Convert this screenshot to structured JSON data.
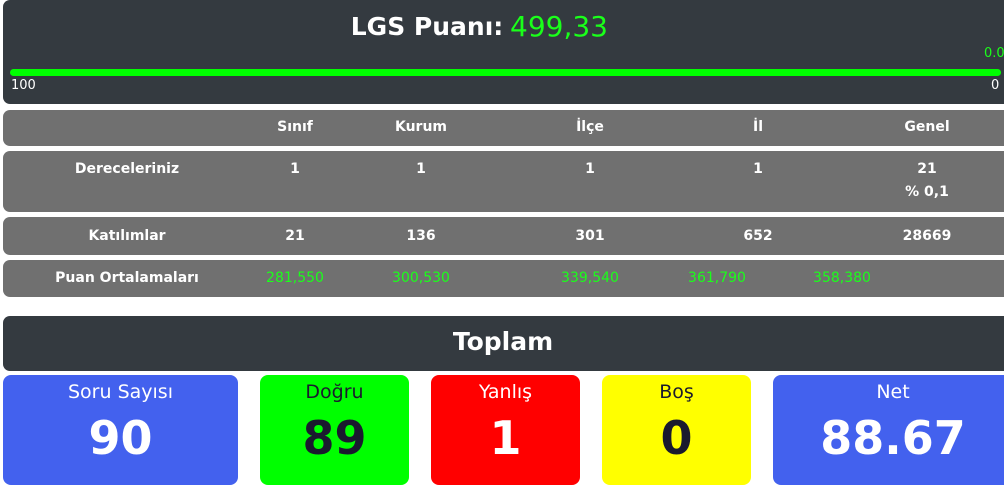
{
  "score": {
    "label": "LGS Puanı:",
    "value": "499,33",
    "bar_value_label": "0.0",
    "bar_left": "100",
    "bar_right": "0",
    "bar_fill_percent": 100
  },
  "table": {
    "headers": [
      "Sınıf",
      "Kurum",
      "İlçe",
      "İl",
      "Genel"
    ],
    "rows": [
      {
        "label": "Dereceleriniz",
        "values": [
          "1",
          "1",
          "1",
          "1",
          "21"
        ],
        "extra": "% 0,1"
      },
      {
        "label": "Katılımlar",
        "values": [
          "21",
          "136",
          "301",
          "652",
          "28669"
        ]
      },
      {
        "label": "Puan Ortalamaları",
        "values": [
          "281,550",
          "300,530",
          "339,540",
          "361,790",
          "358,380"
        ]
      }
    ]
  },
  "summary": {
    "title": "Toplam",
    "cards": [
      {
        "label": "Soru Sayısı",
        "value": "90",
        "color": "#4361ee"
      },
      {
        "label": "Doğru",
        "value": "89",
        "color": "#00ff00"
      },
      {
        "label": "Yanlış",
        "value": "1",
        "color": "#ff0000"
      },
      {
        "label": "Boş",
        "value": "0",
        "color": "#ffff00"
      },
      {
        "label": "Net",
        "value": "88.67",
        "color": "#4361ee"
      }
    ]
  }
}
